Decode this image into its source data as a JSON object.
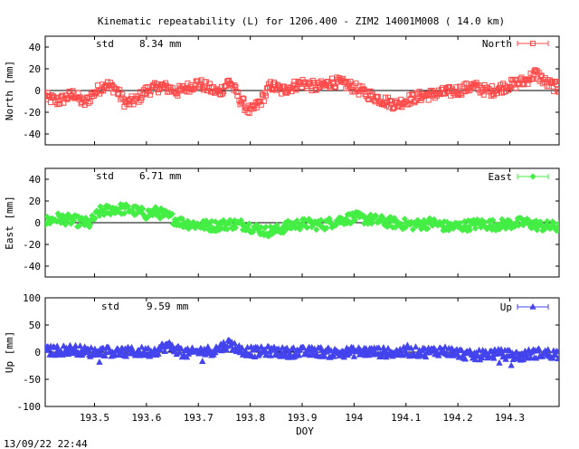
{
  "chart_data": {
    "type": "scatter",
    "title": "Kinematic repeatability (L) for 1206.400 - ZIM2 14001M008  ( 14.0 km)",
    "xlabel": "DOY",
    "xlim": [
      193.405,
      194.395
    ],
    "xticks": [
      193.5,
      193.6,
      193.7,
      193.8,
      193.9,
      194.0,
      194.1,
      194.2,
      194.3
    ],
    "xtick_labels": [
      "193.5",
      "193.6",
      "193.7",
      "193.8",
      "193.9",
      "194",
      "194.1",
      "194.2",
      "194.3"
    ],
    "timestamp": "13/09/22 22:44",
    "panels": [
      {
        "name": "North",
        "ylabel": "North [mm]",
        "ylim": [
          -50,
          50
        ],
        "yticks": [
          40,
          20,
          0,
          -20,
          -40
        ],
        "std_label": "std",
        "std_value": "8.34 mm",
        "color": "#ff4a4a",
        "marker": "square",
        "anchors": [
          [
            193.405,
            -6
          ],
          [
            193.43,
            -10
          ],
          [
            193.46,
            -3
          ],
          [
            193.48,
            -12
          ],
          [
            193.5,
            -2
          ],
          [
            193.52,
            6
          ],
          [
            193.54,
            2
          ],
          [
            193.56,
            -12
          ],
          [
            193.58,
            -9
          ],
          [
            193.6,
            0
          ],
          [
            193.63,
            4
          ],
          [
            193.66,
            -1
          ],
          [
            193.7,
            7
          ],
          [
            193.72,
            2
          ],
          [
            193.74,
            -2
          ],
          [
            193.76,
            9
          ],
          [
            193.78,
            -8
          ],
          [
            193.8,
            -20
          ],
          [
            193.82,
            -10
          ],
          [
            193.84,
            5
          ],
          [
            193.86,
            0
          ],
          [
            193.9,
            7
          ],
          [
            193.93,
            3
          ],
          [
            193.96,
            8
          ],
          [
            193.99,
            5
          ],
          [
            194.02,
            -2
          ],
          [
            194.05,
            -8
          ],
          [
            194.08,
            -13
          ],
          [
            194.1,
            -9
          ],
          [
            194.13,
            -5
          ],
          [
            194.16,
            -3
          ],
          [
            194.2,
            0
          ],
          [
            194.23,
            4
          ],
          [
            194.26,
            -1
          ],
          [
            194.3,
            5
          ],
          [
            194.33,
            9
          ],
          [
            194.35,
            16
          ],
          [
            194.37,
            7
          ],
          [
            194.395,
            2
          ]
        ]
      },
      {
        "name": "East",
        "ylabel": "East [mm]",
        "ylim": [
          -50,
          50
        ],
        "yticks": [
          40,
          20,
          0,
          -20,
          -40
        ],
        "std_label": "std",
        "std_value": "6.71 mm",
        "color": "#44ee44",
        "marker": "diamond",
        "anchors": [
          [
            193.405,
            1
          ],
          [
            193.43,
            4
          ],
          [
            193.46,
            2
          ],
          [
            193.49,
            -1
          ],
          [
            193.51,
            10
          ],
          [
            193.54,
            13
          ],
          [
            193.57,
            12
          ],
          [
            193.6,
            8
          ],
          [
            193.62,
            10
          ],
          [
            193.65,
            4
          ],
          [
            193.67,
            0
          ],
          [
            193.7,
            -2
          ],
          [
            193.73,
            -3
          ],
          [
            193.76,
            -1
          ],
          [
            193.79,
            -2
          ],
          [
            193.81,
            -5
          ],
          [
            193.83,
            -8
          ],
          [
            193.85,
            -7
          ],
          [
            193.88,
            -2
          ],
          [
            193.91,
            -1
          ],
          [
            193.94,
            -2
          ],
          [
            193.97,
            2
          ],
          [
            194.0,
            5
          ],
          [
            194.03,
            3
          ],
          [
            194.06,
            1
          ],
          [
            194.09,
            -1
          ],
          [
            194.12,
            -2
          ],
          [
            194.15,
            0
          ],
          [
            194.18,
            -4
          ],
          [
            194.21,
            -3
          ],
          [
            194.24,
            -1
          ],
          [
            194.27,
            -2
          ],
          [
            194.3,
            -1
          ],
          [
            194.33,
            0
          ],
          [
            194.36,
            -3
          ],
          [
            194.395,
            -4
          ]
        ]
      },
      {
        "name": "Up",
        "ylabel": "Up [mm]",
        "ylim": [
          -100,
          100
        ],
        "yticks": [
          100,
          50,
          0,
          -50,
          -100
        ],
        "std_label": "std",
        "std_value": "9.59 mm",
        "color": "#4444ee",
        "marker": "triangle",
        "anchors": [
          [
            193.405,
            2
          ],
          [
            193.43,
            3
          ],
          [
            193.46,
            5
          ],
          [
            193.49,
            0
          ],
          [
            193.52,
            2
          ],
          [
            193.55,
            -1
          ],
          [
            193.58,
            1
          ],
          [
            193.61,
            0
          ],
          [
            193.64,
            12
          ],
          [
            193.66,
            4
          ],
          [
            193.68,
            -3
          ],
          [
            193.7,
            1
          ],
          [
            193.73,
            3
          ],
          [
            193.76,
            16
          ],
          [
            193.78,
            4
          ],
          [
            193.81,
            0
          ],
          [
            193.84,
            2
          ],
          [
            193.87,
            -1
          ],
          [
            193.9,
            0
          ],
          [
            193.93,
            1
          ],
          [
            193.96,
            -2
          ],
          [
            193.99,
            0
          ],
          [
            194.02,
            1
          ],
          [
            194.05,
            0
          ],
          [
            194.08,
            -1
          ],
          [
            194.11,
            1
          ],
          [
            194.14,
            0
          ],
          [
            194.17,
            3
          ],
          [
            194.2,
            -2
          ],
          [
            194.23,
            -7
          ],
          [
            194.26,
            -3
          ],
          [
            194.29,
            -4
          ],
          [
            194.32,
            -8
          ],
          [
            194.34,
            -3
          ],
          [
            194.36,
            -2
          ],
          [
            194.395,
            -4
          ]
        ]
      }
    ]
  }
}
